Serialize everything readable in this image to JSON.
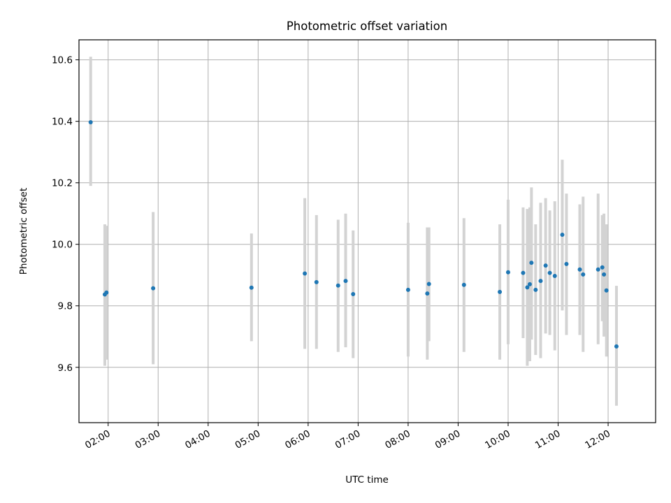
{
  "chart_data": {
    "type": "scatter",
    "title": "Photometric offset variation",
    "xlabel": "UTC time",
    "ylabel": "Photometric offset",
    "x_ticks": [
      "02:00",
      "03:00",
      "04:00",
      "05:00",
      "06:00",
      "07:00",
      "08:00",
      "09:00",
      "10:00",
      "11:00",
      "12:00"
    ],
    "x_tick_hours": [
      2,
      3,
      4,
      5,
      6,
      7,
      8,
      9,
      10,
      11,
      12
    ],
    "y_ticks": [
      "9.6",
      "9.8",
      "10.0",
      "10.2",
      "10.4",
      "10.6"
    ],
    "y_tick_values": [
      9.6,
      9.8,
      10.0,
      10.2,
      10.4,
      10.6
    ],
    "xlim": [
      "01:25",
      "12:57"
    ],
    "ylim": [
      9.42,
      10.665
    ],
    "grid": true,
    "colors": {
      "point": "#1f77b4",
      "errorbar": "#d3d3d3",
      "grid": "#b0b0b0"
    },
    "points": [
      {
        "x": "01:39",
        "y": 10.397,
        "low": 10.19,
        "high": 10.61
      },
      {
        "x": "01:56",
        "y": 9.837,
        "low": 9.605,
        "high": 10.065
      },
      {
        "x": "01:58",
        "y": 9.843,
        "low": 9.625,
        "high": 10.06
      },
      {
        "x": "02:54",
        "y": 9.857,
        "low": 9.61,
        "high": 10.105
      },
      {
        "x": "04:52",
        "y": 9.859,
        "low": 9.685,
        "high": 10.035
      },
      {
        "x": "05:56",
        "y": 9.905,
        "low": 9.66,
        "high": 10.15
      },
      {
        "x": "06:10",
        "y": 9.877,
        "low": 9.66,
        "high": 10.095
      },
      {
        "x": "06:36",
        "y": 9.866,
        "low": 9.65,
        "high": 10.08
      },
      {
        "x": "06:45",
        "y": 9.881,
        "low": 9.665,
        "high": 10.1
      },
      {
        "x": "06:54",
        "y": 9.838,
        "low": 9.63,
        "high": 10.045
      },
      {
        "x": "08:00",
        "y": 9.852,
        "low": 9.635,
        "high": 10.07
      },
      {
        "x": "08:23",
        "y": 9.84,
        "low": 9.625,
        "high": 10.055
      },
      {
        "x": "08:25",
        "y": 9.871,
        "low": 9.685,
        "high": 10.055
      },
      {
        "x": "09:07",
        "y": 9.868,
        "low": 9.65,
        "high": 10.085
      },
      {
        "x": "09:50",
        "y": 9.845,
        "low": 9.625,
        "high": 10.065
      },
      {
        "x": "10:00",
        "y": 9.909,
        "low": 9.675,
        "high": 10.145
      },
      {
        "x": "10:18",
        "y": 9.907,
        "low": 9.695,
        "high": 10.12
      },
      {
        "x": "10:23",
        "y": 9.86,
        "low": 9.605,
        "high": 10.115
      },
      {
        "x": "10:26",
        "y": 9.87,
        "low": 9.62,
        "high": 10.12
      },
      {
        "x": "10:28",
        "y": 9.94,
        "low": 9.69,
        "high": 10.185
      },
      {
        "x": "10:33",
        "y": 9.852,
        "low": 9.64,
        "high": 10.065
      },
      {
        "x": "10:39",
        "y": 9.881,
        "low": 9.63,
        "high": 10.135
      },
      {
        "x": "10:45",
        "y": 9.931,
        "low": 9.71,
        "high": 10.15
      },
      {
        "x": "10:50",
        "y": 9.907,
        "low": 9.705,
        "high": 10.11
      },
      {
        "x": "10:56",
        "y": 9.897,
        "low": 9.655,
        "high": 10.14
      },
      {
        "x": "11:05",
        "y": 10.031,
        "low": 9.785,
        "high": 10.275
      },
      {
        "x": "11:10",
        "y": 9.936,
        "low": 9.705,
        "high": 10.165
      },
      {
        "x": "11:26",
        "y": 9.918,
        "low": 9.705,
        "high": 10.13
      },
      {
        "x": "11:30",
        "y": 9.902,
        "low": 9.65,
        "high": 10.155
      },
      {
        "x": "11:48",
        "y": 9.918,
        "low": 9.675,
        "high": 10.165
      },
      {
        "x": "11:53",
        "y": 9.925,
        "low": 9.75,
        "high": 10.095
      },
      {
        "x": "11:55",
        "y": 9.902,
        "low": 9.7,
        "high": 10.1
      },
      {
        "x": "11:58",
        "y": 9.85,
        "low": 9.635,
        "high": 10.065
      },
      {
        "x": "12:10",
        "y": 9.668,
        "low": 9.475,
        "high": 9.865
      }
    ]
  }
}
